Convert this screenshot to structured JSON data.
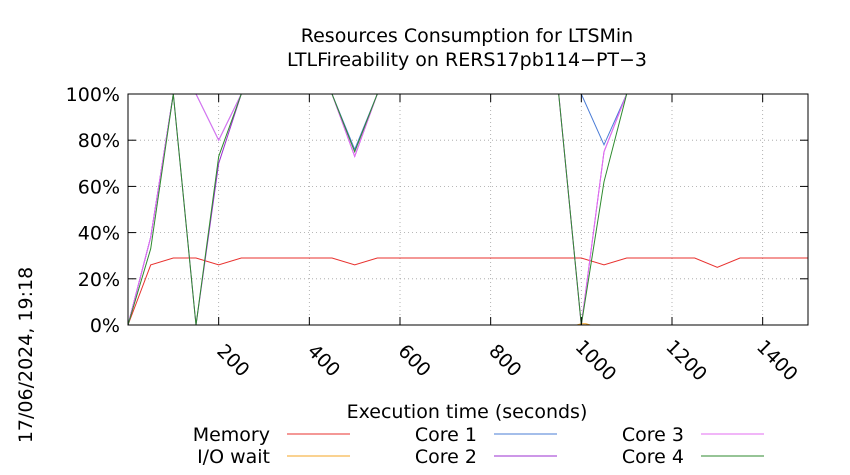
{
  "chart_data": {
    "type": "line",
    "title": "Resources Consumption for LTSMin",
    "subtitle": "LTLFireability on RERS17pb114−PT−3",
    "xlabel": "Execution time (seconds)",
    "ylabel": "",
    "timestamp": "17/06/2024, 19:18",
    "xlim": [
      0,
      1500
    ],
    "ylim": [
      0,
      100
    ],
    "x_ticks": [
      200,
      400,
      600,
      800,
      1000,
      1200,
      1400
    ],
    "y_ticks": [
      {
        "value": 0,
        "label": "0%"
      },
      {
        "value": 20,
        "label": "20%"
      },
      {
        "value": 40,
        "label": "40%"
      },
      {
        "value": 60,
        "label": "60%"
      },
      {
        "value": 80,
        "label": "80%"
      },
      {
        "value": 100,
        "label": "100%"
      }
    ],
    "grid": true,
    "legend_position": "bottom",
    "series": [
      {
        "name": "Memory",
        "color": "#e8312e",
        "x": [
          0,
          50,
          100,
          150,
          200,
          250,
          300,
          350,
          400,
          450,
          500,
          550,
          600,
          650,
          700,
          750,
          800,
          850,
          900,
          950,
          1000,
          1050,
          1100,
          1150,
          1200,
          1250,
          1300,
          1350,
          1400,
          1450,
          1500
        ],
        "y": [
          0,
          26,
          29,
          29,
          26,
          29,
          29,
          29,
          29,
          29,
          26,
          29,
          29,
          29,
          29,
          29,
          29,
          29,
          29,
          29,
          29,
          26,
          29,
          29,
          29,
          29,
          25,
          29,
          29,
          29,
          29
        ]
      },
      {
        "name": "I/O wait",
        "color": "#f5a623",
        "x": [
          990,
          1000,
          1010,
          1020
        ],
        "y": [
          0,
          0.5,
          0.5,
          0
        ]
      },
      {
        "name": "Core 1",
        "color": "#4a7cd6",
        "x": [
          0,
          50,
          100,
          150,
          200,
          250,
          450,
          500,
          550,
          1000,
          1050,
          1100,
          1500
        ],
        "y": [
          0,
          38,
          100,
          100,
          80,
          100,
          100,
          76,
          100,
          100,
          78,
          100,
          100
        ]
      },
      {
        "name": "Core 2",
        "color": "#9b2fd0",
        "x": [
          0,
          50,
          100,
          150,
          200,
          250,
          450,
          500,
          550,
          950,
          1000,
          1050,
          1100,
          1500
        ],
        "y": [
          0,
          38,
          100,
          0,
          70,
          100,
          100,
          73,
          100,
          100,
          0,
          75,
          100,
          100
        ]
      },
      {
        "name": "Core 3",
        "color": "#e36ef2",
        "x": [
          0,
          50,
          100,
          150,
          200,
          250,
          450,
          500,
          550,
          950,
          1000,
          1050,
          1100,
          1500
        ],
        "y": [
          0,
          38,
          100,
          100,
          80,
          100,
          100,
          73,
          100,
          100,
          0,
          75,
          100,
          100
        ]
      },
      {
        "name": "Core 4",
        "color": "#2e8a2e",
        "x": [
          0,
          50,
          100,
          150,
          200,
          250,
          450,
          500,
          550,
          950,
          1000,
          1050,
          1100,
          1500
        ],
        "y": [
          0,
          33,
          100,
          0,
          73,
          100,
          100,
          75,
          100,
          100,
          0,
          62,
          100,
          100
        ]
      }
    ]
  }
}
